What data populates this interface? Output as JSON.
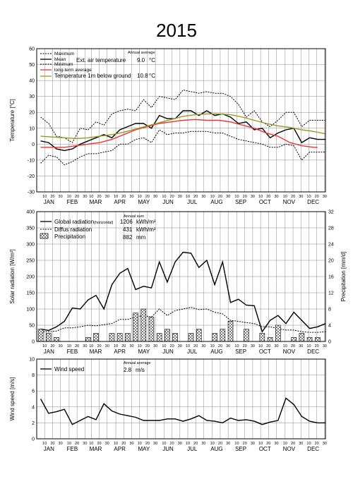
{
  "title": "2015",
  "months": [
    "JAN",
    "FEB",
    "MAR",
    "APR",
    "MAY",
    "JUN",
    "JUL",
    "AUG",
    "SEP",
    "OCT",
    "NOV",
    "DEC"
  ],
  "day_ticks": [
    "10",
    "20",
    "30"
  ],
  "chart_data": [
    {
      "type": "line",
      "ylabel": "Temperature [°C]",
      "ylim": [
        -30,
        60
      ],
      "yticks": [
        -30,
        -20,
        -10,
        0,
        10,
        20,
        30,
        40,
        50,
        60
      ],
      "x_unit": "day of year",
      "grid": true,
      "legend": {
        "maximum": "Maximum",
        "mean": "Mean",
        "minimum": "Minimum",
        "ext_air": "Ext. air temperature",
        "annual_average_label": "Annual average",
        "ext_air_value": "9.0",
        "ext_air_unit": "°C",
        "long_term": "long-term average",
        "ground": "Temperature 1m below ground",
        "ground_value": "10.8",
        "ground_unit": "°C"
      },
      "series": [
        {
          "name": "Maximum",
          "style": "dotted",
          "color": "#000000",
          "x": [
            5,
            15,
            25,
            35,
            45,
            55,
            65,
            75,
            85,
            95,
            105,
            115,
            125,
            135,
            145,
            155,
            165,
            175,
            185,
            195,
            205,
            215,
            225,
            235,
            245,
            255,
            265,
            275,
            285,
            295,
            305,
            315,
            325,
            335,
            345,
            355,
            365
          ],
          "values": [
            17,
            13,
            5,
            4,
            1,
            10,
            9,
            14,
            12,
            19,
            21,
            22,
            21,
            28,
            23,
            30,
            29,
            28,
            34,
            33,
            32,
            33,
            32,
            32,
            30,
            25,
            17,
            21,
            14,
            11,
            15,
            20,
            20,
            11,
            15,
            15,
            15
          ]
        },
        {
          "name": "Mean",
          "style": "solid",
          "color": "#000000",
          "x": [
            5,
            15,
            25,
            35,
            45,
            55,
            65,
            75,
            85,
            95,
            105,
            115,
            125,
            135,
            145,
            155,
            165,
            175,
            185,
            195,
            205,
            215,
            225,
            235,
            245,
            255,
            265,
            275,
            285,
            295,
            305,
            315,
            325,
            335,
            345,
            355,
            365
          ],
          "values": [
            2,
            1,
            -3,
            -4,
            -3,
            0,
            2,
            4,
            6,
            4,
            9,
            11,
            13,
            13,
            10,
            18,
            16,
            16,
            21,
            21,
            18,
            21,
            18,
            19,
            17,
            13,
            14,
            9,
            10,
            4,
            7,
            9,
            10,
            1,
            4,
            3,
            3
          ]
        },
        {
          "name": "Minimum",
          "style": "dotted",
          "color": "#000000",
          "x": [
            5,
            15,
            25,
            35,
            45,
            55,
            65,
            75,
            85,
            95,
            105,
            115,
            125,
            135,
            145,
            155,
            165,
            175,
            185,
            195,
            205,
            215,
            225,
            235,
            245,
            255,
            265,
            275,
            285,
            295,
            305,
            315,
            325,
            335,
            345,
            355,
            365
          ],
          "values": [
            -12,
            -7,
            -8,
            -13,
            -11,
            -8,
            -6,
            -6,
            -5,
            -4,
            0,
            0,
            3,
            4,
            1,
            9,
            6,
            7,
            7,
            8,
            8,
            8,
            7,
            7,
            5,
            3,
            2,
            1,
            0,
            -2,
            -2,
            0,
            -1,
            -10,
            -5,
            -5,
            -5
          ]
        },
        {
          "name": "long-term average",
          "style": "solid",
          "color": "#ee3333",
          "x": [
            5,
            20,
            35,
            50,
            65,
            80,
            95,
            110,
            125,
            140,
            155,
            170,
            185,
            200,
            215,
            230,
            245,
            260,
            275,
            290,
            305,
            320,
            335,
            350,
            355
          ],
          "values": [
            -2,
            -2,
            -2,
            -1,
            0,
            1,
            3,
            6,
            9,
            11,
            13,
            14,
            15,
            15.5,
            15,
            15,
            14,
            12,
            10,
            7,
            5,
            1,
            -1,
            -2,
            -2
          ]
        },
        {
          "name": "Temperature 1m below ground",
          "style": "solid",
          "color": "#999922",
          "x": [
            5,
            20,
            35,
            50,
            65,
            80,
            95,
            110,
            125,
            140,
            155,
            170,
            185,
            200,
            215,
            230,
            245,
            260,
            275,
            290,
            305,
            320,
            335,
            350,
            365
          ],
          "values": [
            5,
            4.5,
            4,
            3.5,
            4,
            5,
            6,
            7.5,
            9.5,
            11.5,
            13.5,
            15.5,
            17.5,
            18.5,
            19,
            19,
            18.5,
            17,
            15,
            13,
            11.5,
            10.5,
            9,
            8,
            6.5
          ]
        }
      ]
    },
    {
      "type": "bar+line",
      "ylabel": "Solar radiation [W/m²]",
      "ylim": [
        0,
        400
      ],
      "yticks": [
        0,
        50,
        100,
        150,
        200,
        250,
        300,
        350,
        400
      ],
      "y2label": "Precipitation [mm/d]",
      "y2lim": [
        0,
        32
      ],
      "y2ticks": [
        0,
        4,
        8,
        12,
        16,
        20,
        24,
        28,
        32
      ],
      "grid": true,
      "legend": {
        "annual_sum_label": "Annual sum",
        "global": "Global radiation",
        "global_note": "(horizontal)",
        "global_value": "1206",
        "diffus": "Diffus radiation",
        "diffus_value": "431",
        "unit_kwh": "kWh/m²",
        "precip": "Precipitation",
        "precip_value": "882",
        "precip_unit": "mm"
      },
      "series": [
        {
          "name": "Global radiation",
          "style": "solid",
          "color": "#000000",
          "x": [
            5,
            15,
            25,
            35,
            45,
            55,
            65,
            75,
            85,
            95,
            105,
            115,
            125,
            135,
            145,
            155,
            165,
            175,
            185,
            195,
            205,
            215,
            225,
            235,
            245,
            255,
            265,
            275,
            285,
            295,
            305,
            315,
            325,
            335,
            345,
            355,
            365
          ],
          "values": [
            38,
            34,
            45,
            62,
            103,
            100,
            128,
            142,
            100,
            175,
            210,
            225,
            160,
            170,
            165,
            245,
            183,
            245,
            275,
            272,
            228,
            250,
            175,
            245,
            120,
            130,
            112,
            110,
            30,
            65,
            80,
            55,
            90,
            65,
            40,
            45,
            55
          ]
        },
        {
          "name": "Diffus radiation",
          "style": "dotted",
          "color": "#000000",
          "x": [
            5,
            15,
            25,
            35,
            45,
            55,
            65,
            75,
            85,
            95,
            105,
            115,
            125,
            135,
            145,
            155,
            165,
            175,
            185,
            195,
            205,
            215,
            225,
            235,
            245,
            255,
            265,
            275,
            285,
            295,
            305,
            315,
            325,
            335,
            345,
            355,
            365
          ],
          "values": [
            30,
            30,
            32,
            42,
            42,
            45,
            50,
            48,
            52,
            55,
            68,
            68,
            75,
            80,
            75,
            100,
            80,
            95,
            100,
            105,
            98,
            100,
            90,
            85,
            65,
            62,
            58,
            55,
            45,
            45,
            40,
            35,
            35,
            30,
            28,
            28,
            30
          ]
        },
        {
          "name": "Precipitation",
          "style": "bars",
          "unit": "mm/d",
          "x": [
            5,
            15,
            25,
            65,
            75,
            95,
            105,
            115,
            125,
            135,
            145,
            155,
            165,
            175,
            195,
            205,
            225,
            235,
            245,
            265,
            285,
            295,
            305,
            325,
            335,
            345,
            355
          ],
          "values": [
            3,
            2,
            1,
            1,
            2,
            2,
            2,
            2,
            7,
            8,
            6,
            2,
            3,
            2,
            2,
            3,
            2,
            3,
            5,
            3,
            2,
            1,
            4,
            1,
            2,
            1,
            1
          ]
        }
      ]
    },
    {
      "type": "line",
      "ylabel": "Wind speed [m/s]",
      "ylim": [
        0,
        10
      ],
      "yticks": [
        0,
        2,
        4,
        6,
        8,
        10
      ],
      "grid": true,
      "legend": {
        "annual_average_label": "Annual average",
        "wind": "Wind speed",
        "wind_value": "2.8",
        "wind_unit": "m/s"
      },
      "series": [
        {
          "name": "Wind speed",
          "style": "solid",
          "color": "#000000",
          "x": [
            5,
            15,
            25,
            35,
            45,
            55,
            65,
            75,
            85,
            95,
            105,
            115,
            125,
            135,
            145,
            155,
            165,
            175,
            185,
            195,
            205,
            215,
            225,
            235,
            245,
            255,
            265,
            275,
            285,
            295,
            305,
            315,
            325,
            335,
            345,
            355,
            365
          ],
          "values": [
            5.0,
            3.2,
            3.4,
            3.7,
            1.8,
            2.3,
            2.8,
            2.4,
            4.4,
            3.5,
            3.1,
            2.9,
            2.7,
            2.3,
            2.3,
            2.3,
            2.5,
            2.5,
            2.2,
            2.5,
            2.9,
            2.3,
            2.2,
            2.0,
            2.6,
            2.3,
            2.4,
            2.2,
            1.8,
            2.1,
            2.3,
            5.1,
            4.3,
            2.8,
            2.2,
            2.0,
            2.0
          ]
        }
      ]
    }
  ]
}
